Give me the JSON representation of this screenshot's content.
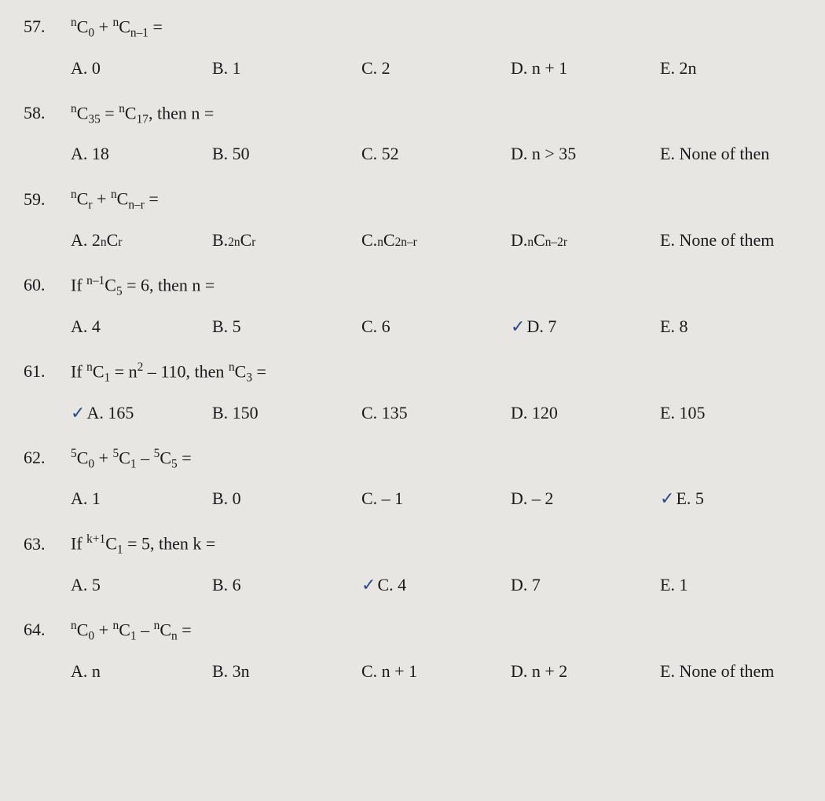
{
  "q57": {
    "num": "57.",
    "a": "A. 0",
    "b": "B. 1",
    "c": "C. 2",
    "d": "D. n + 1",
    "e": "E. 2n"
  },
  "q58": {
    "num": "58.",
    "stem_suffix": ", then n =",
    "a": "A. 18",
    "b": "B. 50",
    "c": "C. 52",
    "d": "D. n > 35",
    "e": "E. None of then"
  },
  "q59": {
    "num": "59.",
    "e": "E. None of them"
  },
  "q60": {
    "num": "60.",
    "a": "A. 4",
    "b": "B. 5",
    "c": "C. 6",
    "d": "D. 7",
    "e": "E. 8"
  },
  "q61": {
    "num": "61.",
    "a": "A. 165",
    "b": "B. 150",
    "c": "C. 135",
    "d": "D. 120",
    "e": "E. 105"
  },
  "q62": {
    "num": "62.",
    "a": "A. 1",
    "b": "B. 0",
    "c": "C. – 1",
    "d": "D. – 2",
    "e": "E. 5"
  },
  "q63": {
    "num": "63.",
    "a": "A. 5",
    "b": "B. 6",
    "c": "C. 4",
    "d": "D. 7",
    "e": "E. 1"
  },
  "q64": {
    "num": "64.",
    "a": "A. n",
    "b": "B. 3n",
    "c": "C. n + 1",
    "d": "D. n + 2",
    "e": "E. None of them"
  }
}
